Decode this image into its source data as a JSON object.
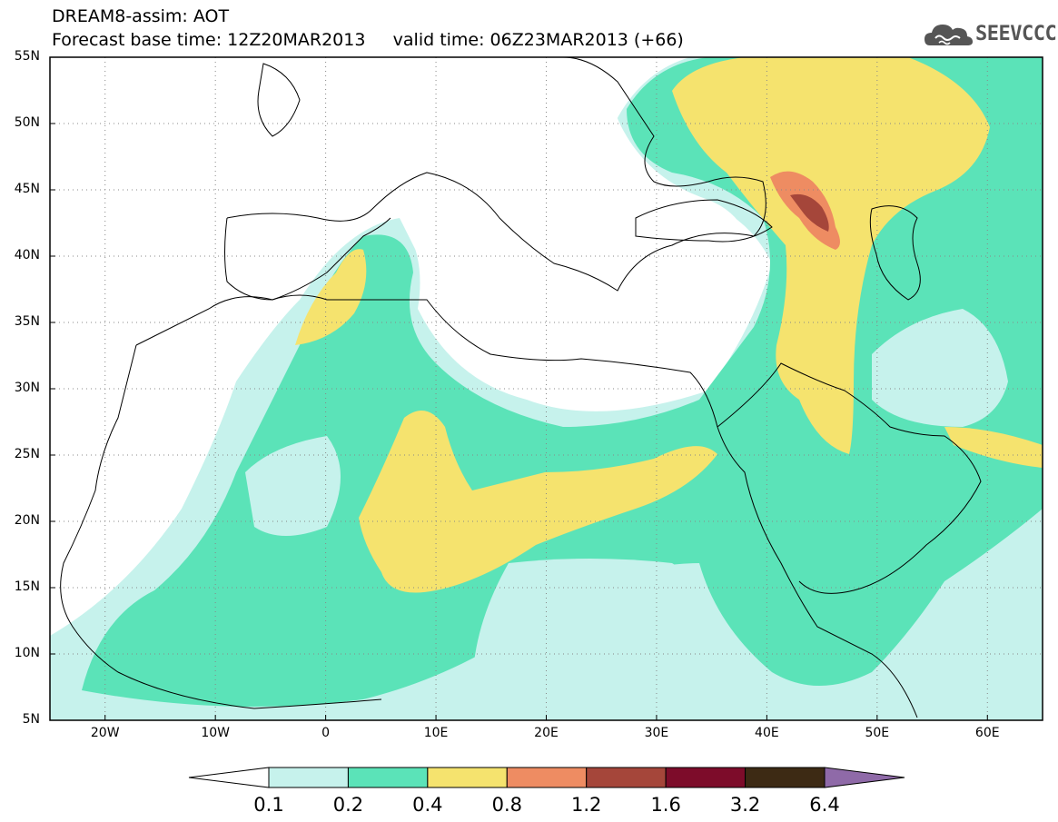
{
  "title": {
    "line1": "DREAM8-assim: AOT",
    "line2": "Forecast base time: 12Z20MAR2013     valid time: 06Z23MAR2013 (+66)"
  },
  "logo": {
    "text": "SEEVCCC",
    "icon": "cloud-icon"
  },
  "map": {
    "lon_range": [
      -25,
      65
    ],
    "lat_range": [
      5,
      55
    ],
    "y_ticks": [
      "55N",
      "50N",
      "45N",
      "40N",
      "35N",
      "30N",
      "25N",
      "20N",
      "15N",
      "10N",
      "5N"
    ],
    "x_ticks": [
      "20W",
      "10W",
      "0",
      "10E",
      "20E",
      "30E",
      "40E",
      "50E",
      "60E"
    ],
    "grid": true
  },
  "colorbar": {
    "labels": [
      "0.1",
      "0.2",
      "0.4",
      "0.8",
      "1.2",
      "1.6",
      "3.2",
      "6.4"
    ],
    "colors": [
      "#ffffff",
      "#c6f2ec",
      "#5be3b8",
      "#f5e36e",
      "#ee8c62",
      "#a5463a",
      "#7d0c2a",
      "#3d2a14",
      "#8f6aa8"
    ]
  }
}
